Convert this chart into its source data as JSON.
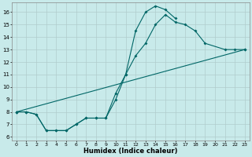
{
  "title": "",
  "xlabel": "Humidex (Indice chaleur)",
  "background_color": "#c8eaea",
  "grid_color": "#c0d8d8",
  "line_color": "#006666",
  "xlim": [
    -0.5,
    23.5
  ],
  "ylim": [
    5.7,
    16.8
  ],
  "xtick_labels": [
    "0",
    "1",
    "2",
    "3",
    "4",
    "5",
    "6",
    "7",
    "8",
    "9",
    "10",
    "11",
    "12",
    "13",
    "14",
    "15",
    "16",
    "17",
    "18",
    "19",
    "20",
    "21",
    "22",
    "23"
  ],
  "xtick_pos": [
    0,
    1,
    2,
    3,
    4,
    5,
    6,
    7,
    8,
    9,
    10,
    11,
    12,
    13,
    14,
    15,
    16,
    17,
    18,
    19,
    20,
    21,
    22,
    23
  ],
  "ytick_pos": [
    6,
    7,
    8,
    9,
    10,
    11,
    12,
    13,
    14,
    15,
    16
  ],
  "lines": [
    {
      "x": [
        0,
        1,
        2,
        3,
        4,
        5,
        6,
        7,
        8,
        9,
        10,
        11,
        12,
        13,
        14,
        15,
        16
      ],
      "y": [
        8,
        8,
        7.8,
        6.5,
        6.5,
        6.5,
        7,
        7.5,
        7.5,
        7.5,
        9,
        11,
        14.5,
        16,
        16.5,
        16.2,
        15.5
      ]
    },
    {
      "x": [
        0,
        1,
        2,
        3,
        4,
        5,
        6,
        7,
        8,
        9,
        10,
        11,
        12,
        13,
        14,
        15,
        16,
        17,
        18,
        19,
        21,
        22,
        23
      ],
      "y": [
        8,
        8,
        7.8,
        6.5,
        6.5,
        6.5,
        7,
        7.5,
        7.5,
        7.5,
        9.5,
        11,
        12.5,
        13.5,
        15,
        15.8,
        15.2,
        15.0,
        14.5,
        13.5,
        13,
        13,
        13
      ]
    },
    {
      "x": [
        0,
        23
      ],
      "y": [
        8,
        13
      ]
    }
  ]
}
